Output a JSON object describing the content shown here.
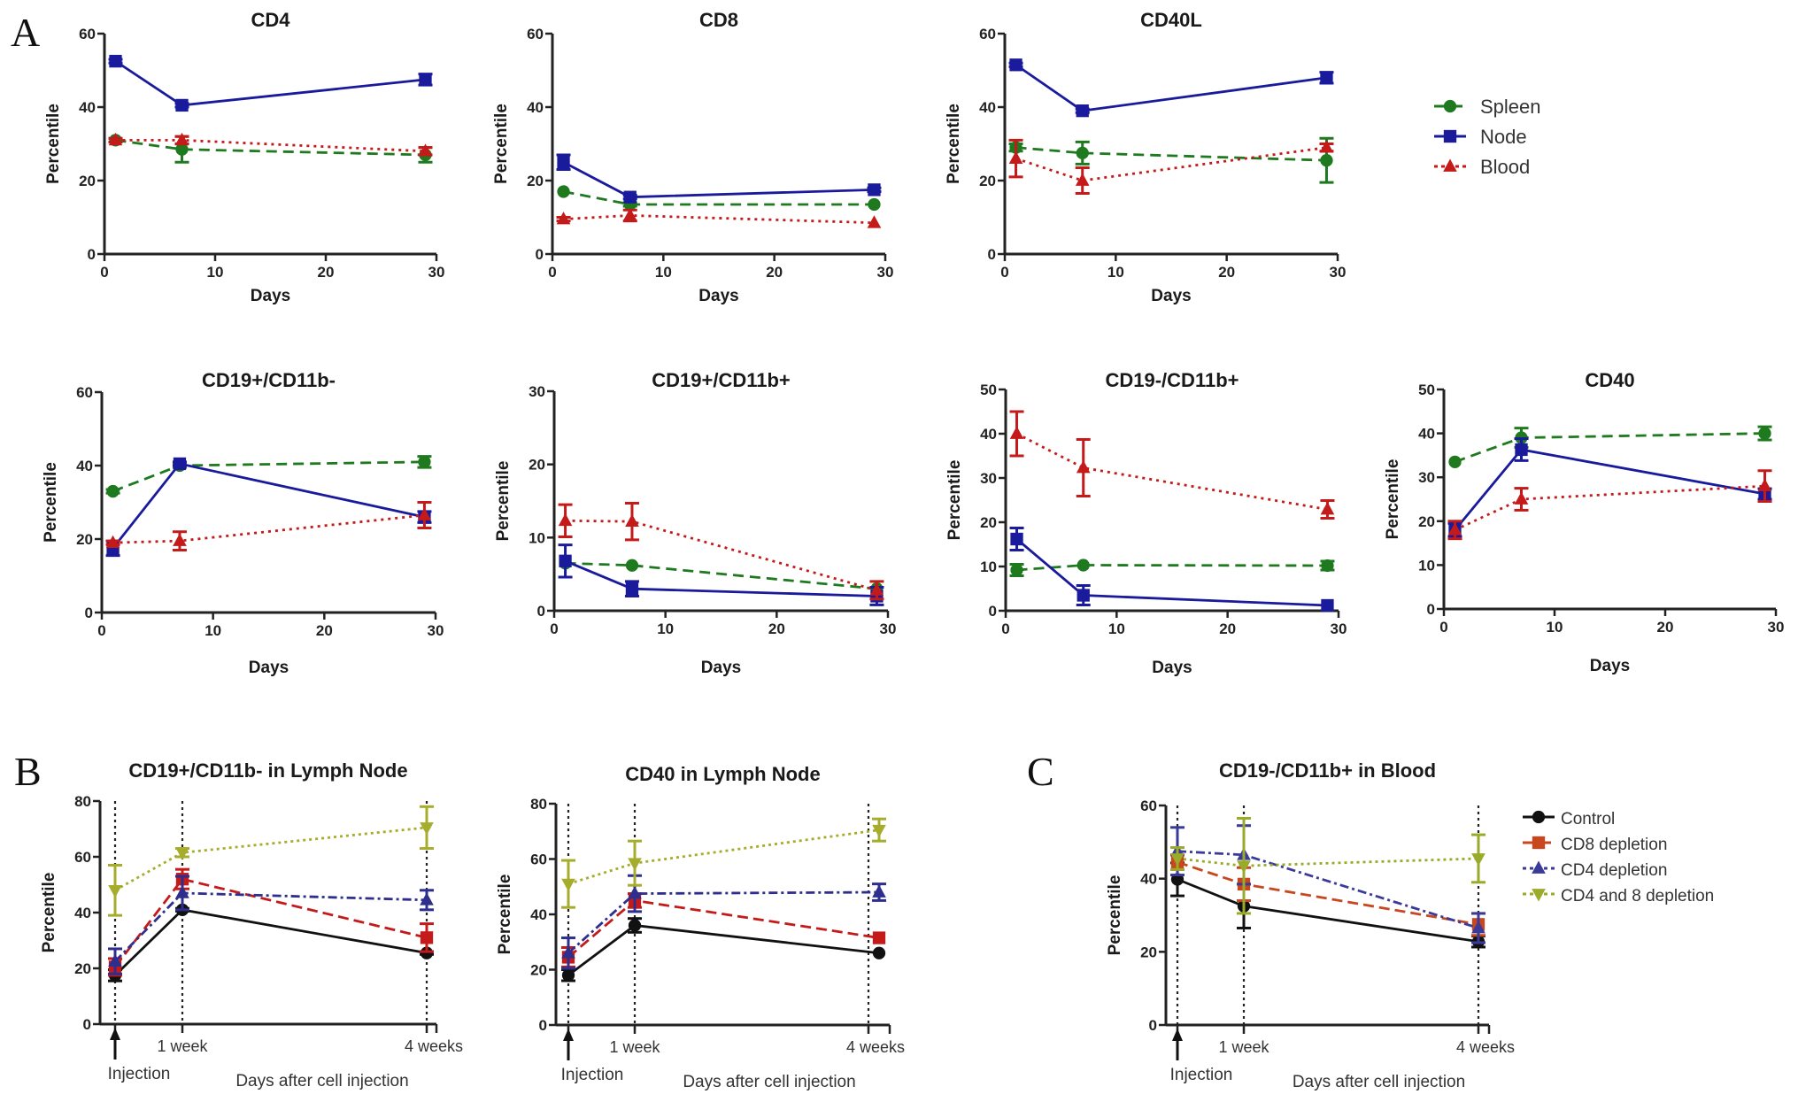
{
  "figure": {
    "panel_letters": [
      "A",
      "B",
      "C"
    ]
  },
  "legend_A": {
    "entries": [
      {
        "name": "Spleen",
        "color": "#1f7a1f",
        "marker": "circle",
        "dash": "dashed"
      },
      {
        "name": "Node",
        "color": "#1a1a9c",
        "marker": "square",
        "dash": "solid"
      },
      {
        "name": "Blood",
        "color": "#c41a1a",
        "marker": "triangle",
        "dash": "dotted"
      }
    ]
  },
  "legend_C": {
    "entries": [
      {
        "name": "Control",
        "color": "#111111",
        "marker": "circle",
        "dash": "solid"
      },
      {
        "name": "CD8 depletion",
        "color": "#c8471e",
        "marker": "square",
        "dash": "dashed"
      },
      {
        "name": "CD4 depletion",
        "color": "#3a3a99",
        "marker": "triangle",
        "dash": "dashdot"
      },
      {
        "name": "CD4 and 8 depletion",
        "color": "#9aaa2a",
        "marker": "triangle-down",
        "dash": "dotted"
      }
    ]
  },
  "chart_data": [
    {
      "id": "cd4",
      "panel": "A",
      "type": "line",
      "title": "CD4",
      "xlabel": "Days",
      "ylabel": "Percentile",
      "xlim": [
        0,
        30
      ],
      "ylim": [
        0,
        60
      ],
      "xticks": [
        0,
        10,
        20,
        30
      ],
      "yticks": [
        0,
        20,
        40,
        60
      ],
      "x": [
        1,
        7,
        29
      ],
      "series": [
        {
          "name": "Spleen",
          "values": [
            31,
            28.5,
            27
          ],
          "errors": [
            0.5,
            3.5,
            2
          ]
        },
        {
          "name": "Node",
          "values": [
            52.5,
            40.5,
            47.5
          ],
          "errors": [
            0.5,
            0.5,
            1.5
          ]
        },
        {
          "name": "Blood",
          "values": [
            31,
            31,
            28
          ],
          "errors": [
            0.5,
            1,
            1
          ]
        }
      ]
    },
    {
      "id": "cd8",
      "panel": "A",
      "type": "line",
      "title": "CD8",
      "xlabel": "Days",
      "ylabel": "Percentile",
      "xlim": [
        0,
        30
      ],
      "ylim": [
        0,
        60
      ],
      "xticks": [
        0,
        10,
        20,
        30
      ],
      "yticks": [
        0,
        20,
        40,
        60
      ],
      "x": [
        1,
        7,
        29
      ],
      "series": [
        {
          "name": "Spleen",
          "values": [
            17,
            13.5,
            13.5
          ],
          "errors": [
            0.3,
            0.5,
            0.3
          ]
        },
        {
          "name": "Node",
          "values": [
            25,
            15.5,
            17.5
          ],
          "errors": [
            2,
            0.5,
            0.5
          ]
        },
        {
          "name": "Blood",
          "values": [
            9.5,
            10.5,
            8.5
          ],
          "errors": [
            0.5,
            1.5,
            0.3
          ]
        }
      ]
    },
    {
      "id": "cd40l",
      "panel": "A",
      "type": "line",
      "title": "CD40L",
      "xlabel": "Days",
      "ylabel": "Percentile",
      "xlim": [
        0,
        30
      ],
      "ylim": [
        0,
        60
      ],
      "xticks": [
        0,
        10,
        20,
        30
      ],
      "yticks": [
        0,
        20,
        40,
        60
      ],
      "x": [
        1,
        7,
        29
      ],
      "series": [
        {
          "name": "Spleen",
          "values": [
            29,
            27.5,
            25.5
          ],
          "errors": [
            1,
            3,
            6
          ]
        },
        {
          "name": "Node",
          "values": [
            51.5,
            39,
            48
          ],
          "errors": [
            0.5,
            0.5,
            1.5
          ]
        },
        {
          "name": "Blood",
          "values": [
            26,
            20,
            29
          ],
          "errors": [
            5,
            3.5,
            1
          ]
        }
      ]
    },
    {
      "id": "cd19p_cd11bn",
      "panel": "A",
      "type": "line",
      "title": "CD19+/CD11b-",
      "xlabel": "Days",
      "ylabel": "Percentile",
      "xlim": [
        0,
        30
      ],
      "ylim": [
        0,
        60
      ],
      "xticks": [
        0,
        10,
        20,
        30
      ],
      "yticks": [
        0,
        20,
        40,
        60
      ],
      "x": [
        1,
        7,
        29
      ],
      "series": [
        {
          "name": "Spleen",
          "values": [
            33,
            40,
            41
          ],
          "errors": [
            0.5,
            0.5,
            1.5
          ]
        },
        {
          "name": "Node",
          "values": [
            17.5,
            40.5,
            26
          ],
          "errors": [
            2,
            0.5,
            1.5
          ]
        },
        {
          "name": "Blood",
          "values": [
            19,
            19.5,
            26.5
          ],
          "errors": [
            0.5,
            2.5,
            3.5
          ]
        }
      ]
    },
    {
      "id": "cd19p_cd11bp",
      "panel": "A",
      "type": "line",
      "title": "CD19+/CD11b+",
      "xlabel": "Days",
      "ylabel": "Percentile",
      "xlim": [
        0,
        30
      ],
      "ylim": [
        0,
        30
      ],
      "xticks": [
        0,
        10,
        20,
        30
      ],
      "yticks": [
        0,
        10,
        20,
        30
      ],
      "x": [
        1,
        7,
        29
      ],
      "series": [
        {
          "name": "Spleen",
          "values": [
            6.5,
            6.2,
            3
          ],
          "errors": [
            0.2,
            0.2,
            0.3
          ]
        },
        {
          "name": "Node",
          "values": [
            6.8,
            3,
            2
          ],
          "errors": [
            2.2,
            1,
            1.2
          ]
        },
        {
          "name": "Blood",
          "values": [
            12.3,
            12.2,
            2.8
          ],
          "errors": [
            2.2,
            2.5,
            1.2
          ]
        }
      ]
    },
    {
      "id": "cd19n_cd11bp",
      "panel": "A",
      "type": "line",
      "title": "CD19-/CD11b+",
      "xlabel": "Days",
      "ylabel": "Percentile",
      "xlim": [
        0,
        30
      ],
      "ylim": [
        0,
        50
      ],
      "xticks": [
        0,
        10,
        20,
        30
      ],
      "yticks": [
        0,
        10,
        20,
        30,
        40,
        50
      ],
      "x": [
        1,
        7,
        29
      ],
      "series": [
        {
          "name": "Spleen",
          "values": [
            9.2,
            10.3,
            10.2
          ],
          "errors": [
            1.3,
            0.3,
            1
          ]
        },
        {
          "name": "Node",
          "values": [
            16.2,
            3.5,
            1.2
          ],
          "errors": [
            2.5,
            2.2,
            0.3
          ]
        },
        {
          "name": "Blood",
          "values": [
            40,
            32.3,
            22.9
          ],
          "errors": [
            5,
            6.4,
            2
          ]
        }
      ]
    },
    {
      "id": "cd40",
      "panel": "A",
      "type": "line",
      "title": "CD40",
      "xlabel": "Days",
      "ylabel": "Percentile",
      "xlim": [
        0,
        30
      ],
      "ylim": [
        0,
        50
      ],
      "xticks": [
        0,
        10,
        20,
        30
      ],
      "yticks": [
        0,
        10,
        20,
        30,
        40,
        50
      ],
      "x": [
        1,
        7,
        29
      ],
      "series": [
        {
          "name": "Spleen",
          "values": [
            33.5,
            39,
            40
          ],
          "errors": [
            0.3,
            2.2,
            1.5
          ]
        },
        {
          "name": "Node",
          "values": [
            18,
            36.3,
            26.2
          ],
          "errors": [
            1.5,
            2.5,
            1.2
          ]
        },
        {
          "name": "Blood",
          "values": [
            18,
            25,
            28
          ],
          "errors": [
            2,
            2.5,
            3.5
          ]
        }
      ]
    },
    {
      "id": "b_cd19p_cd11bn_ln",
      "panel": "B",
      "type": "line",
      "title": "CD19+/CD11b- in Lymph Node",
      "xlabel": "Days after cell injection",
      "ylabel": "Percentile",
      "xlim": [
        0,
        30
      ],
      "ylim": [
        0,
        80
      ],
      "yticks": [
        0,
        20,
        40,
        60,
        80
      ],
      "xtick_labels": [
        "1 week",
        "4 weeks"
      ],
      "marker_label": "Injection",
      "x": [
        1,
        7,
        29
      ],
      "series": [
        {
          "name": "Control",
          "values": [
            17.5,
            41,
            25.5
          ],
          "errors": [
            2,
            0.5,
            0.5
          ]
        },
        {
          "name": "CD8 depletion",
          "values": [
            20.5,
            52,
            31
          ],
          "errors": [
            3,
            3.5,
            5
          ]
        },
        {
          "name": "CD4 depletion",
          "values": [
            22.5,
            47,
            44.5
          ],
          "errors": [
            4.5,
            6,
            3.5
          ]
        },
        {
          "name": "CD4 and 8 depletion",
          "values": [
            48,
            61.5,
            70.5
          ],
          "errors": [
            9,
            1.5,
            7.5
          ]
        }
      ]
    },
    {
      "id": "b_cd40_ln",
      "panel": "B",
      "type": "line",
      "title": "CD40 in Lymph Node",
      "xlabel": "Days after cell injection",
      "ylabel": "Percentile",
      "xlim": [
        0,
        30
      ],
      "ylim": [
        0,
        80
      ],
      "yticks": [
        0,
        20,
        40,
        60,
        80
      ],
      "xtick_labels": [
        "1 week",
        "4 weeks"
      ],
      "marker_label": "Injection",
      "x": [
        1,
        7,
        29
      ],
      "series": [
        {
          "name": "Control",
          "values": [
            18,
            36,
            26
          ],
          "errors": [
            2,
            2.5,
            0.3
          ]
        },
        {
          "name": "CD8 depletion",
          "values": [
            24.5,
            45,
            31.5
          ],
          "errors": [
            3.5,
            2.5,
            0.3
          ]
        },
        {
          "name": "CD4 depletion",
          "values": [
            26,
            47.5,
            48
          ],
          "errors": [
            5.5,
            6.5,
            3
          ]
        },
        {
          "name": "CD4 and 8 depletion",
          "values": [
            51,
            58.5,
            70.5
          ],
          "errors": [
            8.5,
            8,
            4
          ]
        }
      ]
    },
    {
      "id": "c_cd19n_cd11bp_blood",
      "panel": "C",
      "type": "line",
      "title": "CD19-/CD11b+ in Blood",
      "xlabel": "Days after cell injection",
      "ylabel": "Percentile",
      "xlim": [
        0,
        30
      ],
      "ylim": [
        0,
        60
      ],
      "yticks": [
        0,
        20,
        40,
        60
      ],
      "xtick_labels": [
        "1 week",
        "4 weeks"
      ],
      "marker_label": "Injection",
      "x": [
        1,
        7,
        29
      ],
      "series": [
        {
          "name": "Control",
          "values": [
            39.8,
            32.5,
            22.8
          ],
          "errors": [
            4.5,
            6,
            1.5
          ]
        },
        {
          "name": "CD8 depletion",
          "values": [
            44.5,
            38.5,
            27.5
          ],
          "errors": [
            2,
            4.5,
            3
          ]
        },
        {
          "name": "CD4 depletion",
          "values": [
            47.5,
            46.5,
            26.5
          ],
          "errors": [
            6.5,
            8,
            4
          ]
        },
        {
          "name": "CD4 and 8 depletion",
          "values": [
            45.5,
            43.5,
            45.5
          ],
          "errors": [
            3,
            13,
            6.5
          ]
        }
      ]
    }
  ]
}
